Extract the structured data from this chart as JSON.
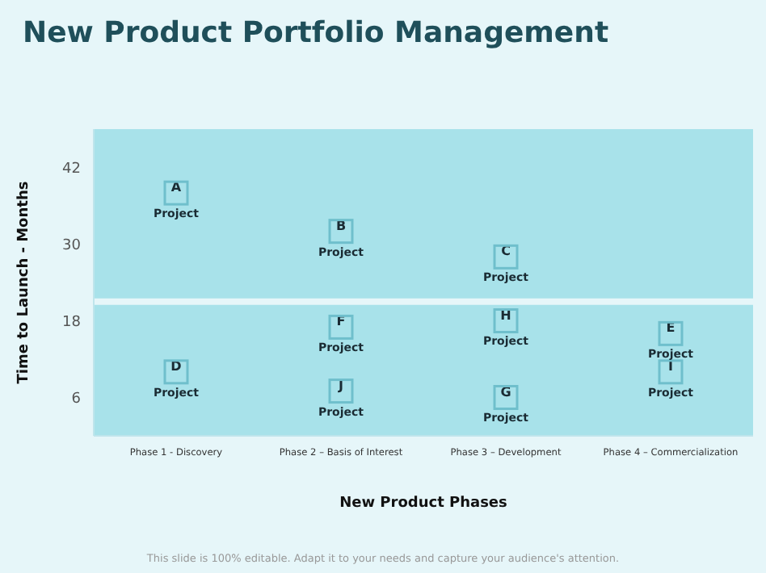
{
  "chart_data": {
    "type": "scatter",
    "title": "New Product Portfolio Management",
    "xlabel": "New Product Phases",
    "ylabel": "Time to Launch - Months",
    "categories": [
      "Phase 1 - Discovery",
      "Phase 2 – Basis of Interest",
      "Phase 3 – Development",
      "Phase 4 – Commercialization"
    ],
    "ylim": [
      0,
      48
    ],
    "yticks": [
      6,
      18,
      30,
      42
    ],
    "grid": false,
    "legend": false,
    "marker": "square",
    "series": [
      {
        "color": "#6fbfcc",
        "x": [
          "Phase 1 - Discovery",
          "Phase 2 – Basis of Interest",
          "Phase 3 – Development",
          "Phase 1 - Discovery",
          "Phase 4 – Commercialization",
          "Phase 2 – Basis of Interest",
          "Phase 3 – Development",
          "Phase 3 – Development",
          "Phase 4 – Commercialization",
          "Phase 2 – Basis of Interest"
        ],
        "values": [
          38,
          32,
          28,
          10,
          16,
          17,
          6,
          18,
          10,
          7
        ],
        "value_labels": [
          "A",
          "B",
          "C",
          "D",
          "E",
          "F",
          "G",
          "H",
          "I",
          "J"
        ]
      }
    ],
    "ref_lines": [
      {
        "axis": "y",
        "value": 21,
        "color": "#e6f6f9"
      }
    ],
    "annotations": [
      {
        "text": "Project",
        "x": "Phase 1 - Discovery",
        "y": 38
      },
      {
        "text": "Project",
        "x": "Phase 2 – Basis of Interest",
        "y": 32
      },
      {
        "text": "Project",
        "x": "Phase 3 – Development",
        "y": 28
      },
      {
        "text": "Project",
        "x": "Phase 1 - Discovery",
        "y": 10
      },
      {
        "text": "Project",
        "x": "Phase 4 – Commercialization",
        "y": 16
      },
      {
        "text": "Project",
        "x": "Phase 2 – Basis of Interest",
        "y": 17
      },
      {
        "text": "Project",
        "x": "Phase 3 – Development",
        "y": 6
      },
      {
        "text": "Project",
        "x": "Phase 3 – Development",
        "y": 18
      },
      {
        "text": "Project",
        "x": "Phase 4 – Commercialization",
        "y": 10
      },
      {
        "text": "Project",
        "x": "Phase 2 – Basis of Interest",
        "y": 7
      },
      "This slide is 100% editable. Adapt it to your needs and capture your audience's attention."
    ]
  }
}
